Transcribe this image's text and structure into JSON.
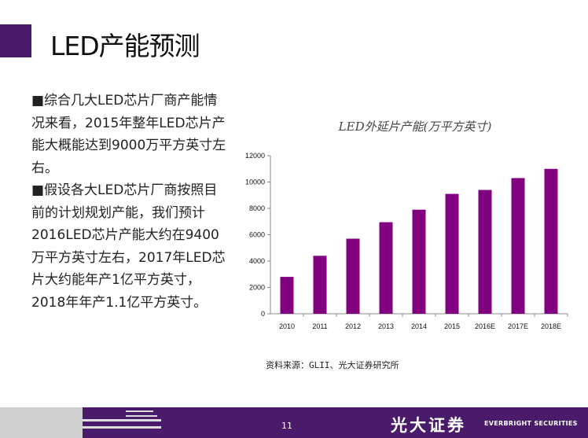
{
  "title": "LED产能预测",
  "bullets": [
    "■综合几大LED芯片厂商产能情况来看，2015年整年LED芯片产能大概能达到9000万平方英寸左右。",
    "■假设各大LED芯片厂商按照目前的计划规划产能，我们预计2016LED芯片产能大约在9400万平方英寸左右，2017年LED芯片大约能年产1亿平方英寸，2018年年产1.1亿平方英寸。"
  ],
  "source": "资料来源：GLII、光大证券研究所",
  "footer": {
    "page": "11",
    "brand_cn": "光大证券",
    "brand_en": "EVERBRIGHT SECURITIES"
  },
  "colors": {
    "brand": "#4a1a6b",
    "bar": "#800080"
  },
  "chart_data": {
    "type": "bar",
    "title": "LED外延片产能(万平方英寸)",
    "categories": [
      "2010",
      "2011",
      "2012",
      "2013",
      "2014",
      "2015",
      "2016E",
      "2017E",
      "2018E"
    ],
    "values": [
      2800,
      4400,
      5700,
      6950,
      7900,
      9100,
      9400,
      10300,
      11000
    ],
    "ylim": [
      0,
      12000
    ],
    "yticks": [
      "0",
      "2000",
      "4000",
      "6000",
      "8000",
      "10000",
      "12000"
    ],
    "grid": false
  }
}
